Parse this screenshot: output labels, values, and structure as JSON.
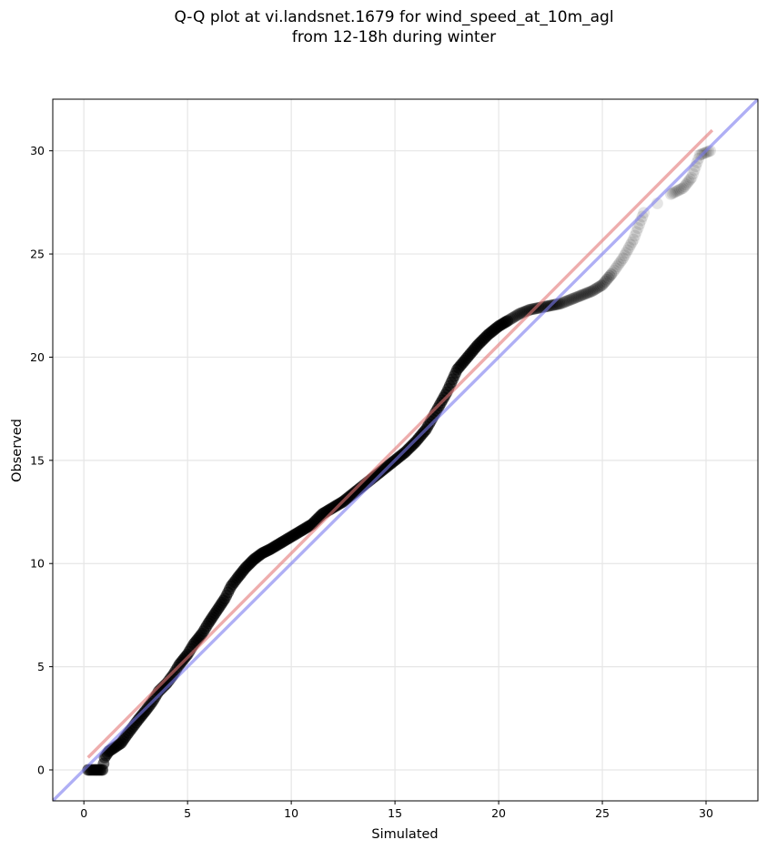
{
  "chart_data": {
    "type": "scatter",
    "title": "Q-Q plot at vi.landsnet.1679 for wind_speed_at_10m_agl\nfrom 12-18h during winter",
    "xlabel": "Simulated",
    "ylabel": "Observed",
    "xlim": [
      -1.5,
      32.5
    ],
    "ylim": [
      -1.5,
      32.5
    ],
    "xticks": [
      0,
      5,
      10,
      15,
      20,
      25,
      30
    ],
    "yticks": [
      0,
      5,
      10,
      15,
      20,
      25,
      30
    ],
    "grid": true,
    "point_color": "#000000",
    "series": [
      {
        "type": "scatter",
        "x": [
          0.2,
          0.5,
          0.7,
          0.9,
          1.0,
          1.2,
          1.5,
          1.8,
          2.0,
          2.3,
          2.6,
          3.0,
          3.3,
          3.6,
          4.0,
          4.3,
          4.6,
          5.0,
          5.3,
          5.7,
          6.0,
          6.4,
          6.8,
          7.1,
          7.4,
          7.8,
          8.2,
          8.6,
          9.0,
          9.5,
          10.0,
          10.5,
          11.0,
          11.5,
          12.0,
          12.5,
          13.0,
          13.5,
          14.0,
          14.5,
          15.0,
          15.5,
          16.0,
          16.5,
          17.0,
          17.5,
          18.0,
          18.5,
          19.0,
          19.5,
          20.0,
          20.5,
          21.0,
          21.5,
          22.0,
          22.5,
          23.0,
          23.5,
          24.0,
          24.5,
          25.0,
          25.5,
          26.0,
          26.5,
          27.0,
          28.3,
          28.9,
          29.3,
          29.7,
          30.2
        ],
        "y": [
          0.0,
          0.0,
          0.0,
          0.0,
          0.6,
          0.9,
          1.1,
          1.3,
          1.6,
          2.0,
          2.4,
          2.9,
          3.3,
          3.8,
          4.2,
          4.6,
          5.1,
          5.6,
          6.1,
          6.6,
          7.1,
          7.7,
          8.3,
          8.9,
          9.3,
          9.8,
          10.2,
          10.5,
          10.7,
          11.0,
          11.3,
          11.6,
          11.9,
          12.4,
          12.7,
          13.0,
          13.4,
          13.8,
          14.2,
          14.6,
          15.0,
          15.4,
          15.9,
          16.5,
          17.4,
          18.3,
          19.4,
          20.0,
          20.6,
          21.1,
          21.5,
          21.8,
          22.1,
          22.3,
          22.4,
          22.5,
          22.6,
          22.8,
          23.0,
          23.2,
          23.5,
          24.1,
          24.8,
          25.7,
          27.0,
          27.9,
          28.2,
          28.7,
          29.8,
          30.0
        ]
      },
      {
        "type": "line",
        "color": "#e37777",
        "x": [
          0.2,
          30.3
        ],
        "y": [
          0.6,
          31.0
        ]
      },
      {
        "type": "line",
        "color": "#7a7aee",
        "x": [
          -1.5,
          32.5
        ],
        "y": [
          -1.5,
          32.5
        ]
      }
    ]
  }
}
